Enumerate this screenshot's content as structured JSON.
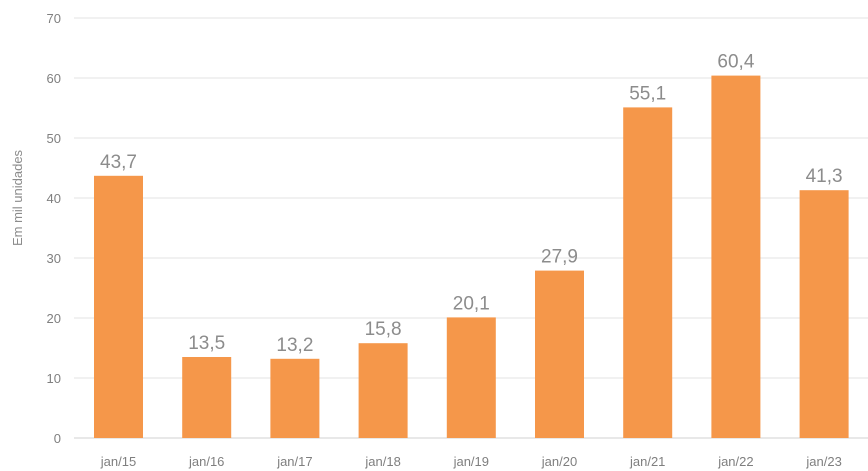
{
  "chart_data": {
    "type": "bar",
    "categories": [
      "jan/15",
      "jan/16",
      "jan/17",
      "jan/18",
      "jan/19",
      "jan/20",
      "jan/21",
      "jan/22",
      "jan/23"
    ],
    "values": [
      43.7,
      13.5,
      13.2,
      15.8,
      20.1,
      27.9,
      55.1,
      60.4,
      41.3
    ],
    "value_labels": [
      "43,7",
      "13,5",
      "13,2",
      "15,8",
      "20,1",
      "27,9",
      "55,1",
      "60,4",
      "41,3"
    ],
    "title": "",
    "xlabel": "",
    "ylabel": "Em mil unidades",
    "ylim": [
      0,
      70
    ],
    "yticks": [
      0,
      10,
      20,
      30,
      40,
      50,
      60,
      70
    ],
    "grid": true,
    "legend": "none",
    "bar_color": "#f5974a"
  }
}
